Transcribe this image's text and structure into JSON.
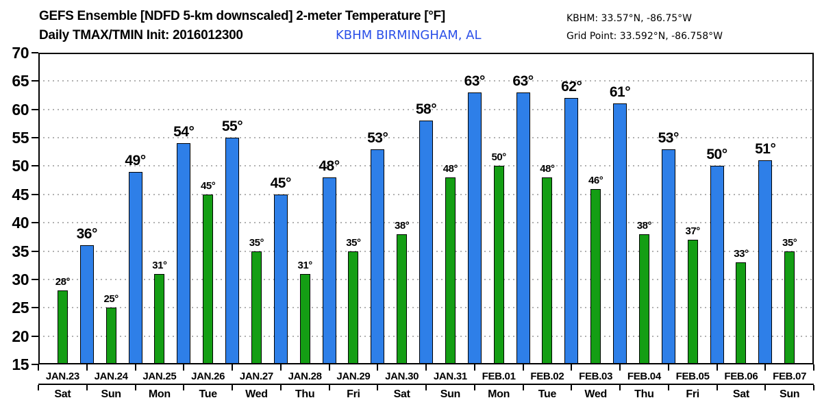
{
  "header": {
    "title": "GEFS Ensemble [NDFD 5-km downscaled] 2-meter Temperature [°F]",
    "subtitle": "Daily TMAX/TMIN Init: 2016012300",
    "station": "KBHM BIRMINGHAM, AL",
    "station_coords": "KBHM: 33.57°N, -86.75°W",
    "grid_point": "Grid Point: 33.592°N, -86.758°W"
  },
  "chart_data": {
    "type": "bar",
    "title": "GEFS Ensemble [NDFD 5-km downscaled] 2-meter Temperature [°F]",
    "subtitle": "Daily TMAX/TMIN Init: 2016012300",
    "station": "KBHM BIRMINGHAM, AL",
    "categories": [
      "JAN.23",
      "JAN.24",
      "JAN.25",
      "JAN.26",
      "JAN.27",
      "JAN.28",
      "JAN.29",
      "JAN.30",
      "JAN.31",
      "FEB.01",
      "FEB.02",
      "FEB.03",
      "FEB.04",
      "FEB.05",
      "FEB.06",
      "FEB.07"
    ],
    "weekdays": [
      "Sat",
      "Sun",
      "Mon",
      "Tue",
      "Wed",
      "Thu",
      "Fri",
      "Sat",
      "Sun",
      "Mon",
      "Tue",
      "Wed",
      "Thu",
      "Fri",
      "Sat",
      "Sun"
    ],
    "series": [
      {
        "name": "TMIN",
        "color": "#149e14",
        "values": [
          28,
          25,
          31,
          45,
          35,
          31,
          35,
          38,
          48,
          50,
          48,
          46,
          38,
          37,
          33,
          35
        ]
      },
      {
        "name": "TMAX",
        "color": "#2e7fe8",
        "values": [
          36,
          49,
          54,
          55,
          45,
          48,
          53,
          58,
          63,
          63,
          62,
          61,
          53,
          50,
          51,
          null
        ]
      }
    ],
    "value_suffix": "°",
    "xlabel": "",
    "ylabel": "",
    "ylim": [
      15,
      70
    ],
    "ytick_step": 5,
    "grid": "horizontal-dotted",
    "legend_position": "none"
  },
  "colors": {
    "tmin_bar": "#149e14",
    "tmax_bar": "#2e7fe8",
    "station_text": "#2a4fe8",
    "bar_outline": "#000000",
    "grid_dots": "#b0b0b0",
    "axis": "#000000",
    "background": "#ffffff",
    "text": "#000000"
  }
}
